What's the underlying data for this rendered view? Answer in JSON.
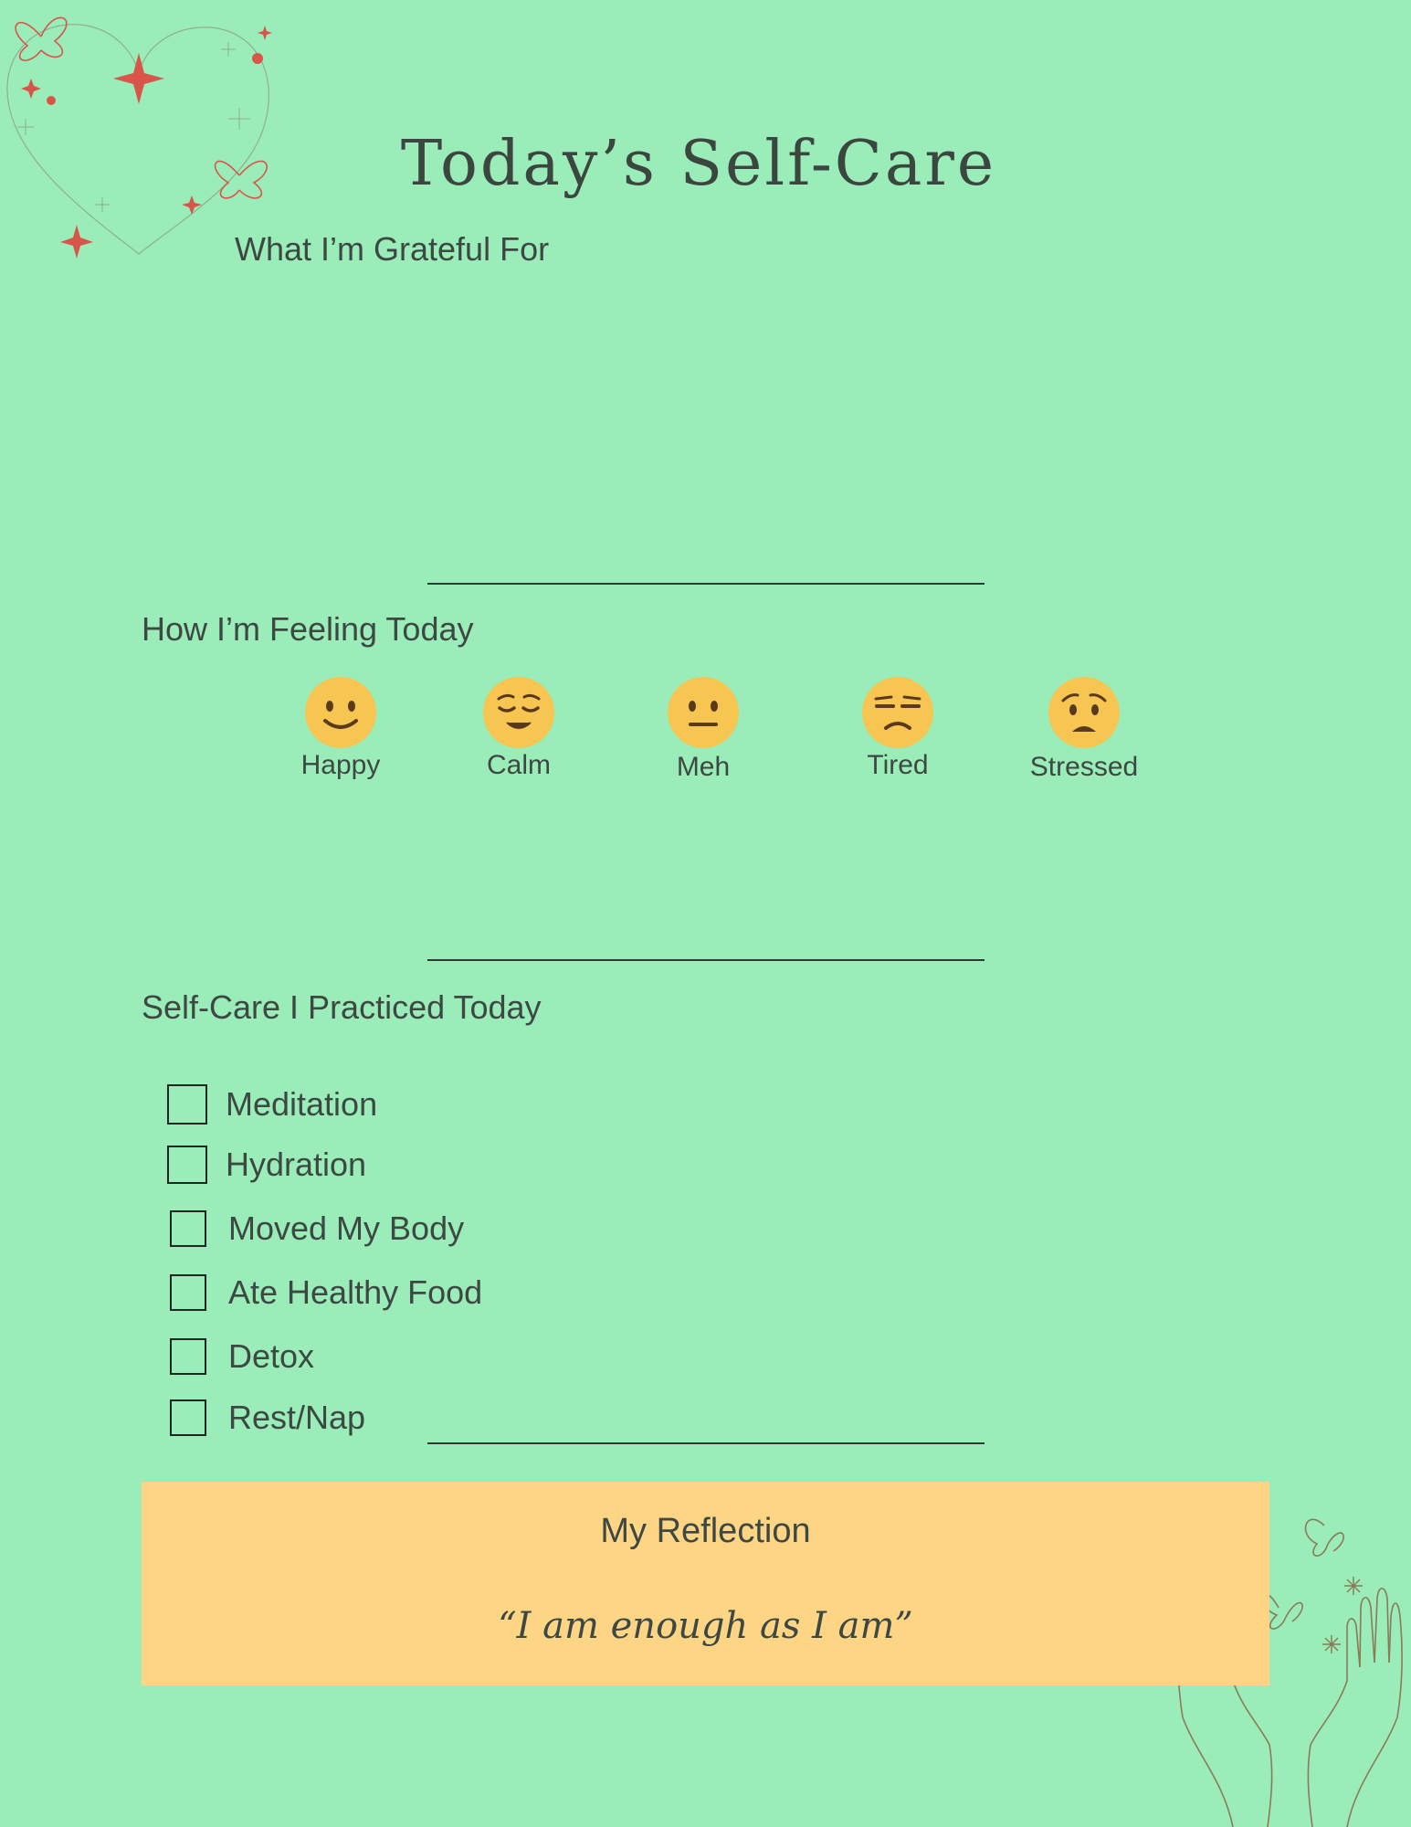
{
  "page": {
    "title": "Today’s Self-Care"
  },
  "gratitude": {
    "heading": "What I’m Grateful For"
  },
  "feeling": {
    "heading": "How I’m Feeling Today",
    "moods": [
      {
        "label": "Happy",
        "icon": "slightly-smiling-face-icon"
      },
      {
        "label": "Calm",
        "icon": "relieved-face-icon"
      },
      {
        "label": "Meh",
        "icon": "neutral-face-icon"
      },
      {
        "label": "Tired",
        "icon": "unamused-face-icon"
      },
      {
        "label": "Stressed",
        "icon": "worried-face-icon"
      }
    ]
  },
  "practices": {
    "heading": "Self-Care I Practiced Today",
    "items": [
      {
        "label": "Meditation",
        "checked": false
      },
      {
        "label": "Hydration",
        "checked": false
      },
      {
        "label": "Moved My Body",
        "checked": false
      },
      {
        "label": "Ate Healthy Food",
        "checked": false
      },
      {
        "label": "Detox",
        "checked": false
      },
      {
        "label": "Rest/Nap",
        "checked": false
      }
    ]
  },
  "reflection": {
    "title": "My Reflection",
    "quote": "“I am enough as I am”"
  },
  "colors": {
    "background": "#9aedb8",
    "reflection_box": "#fdd585",
    "emoji": "#f6c552",
    "accent_star": "#d9554a",
    "text": "#3d4842"
  }
}
